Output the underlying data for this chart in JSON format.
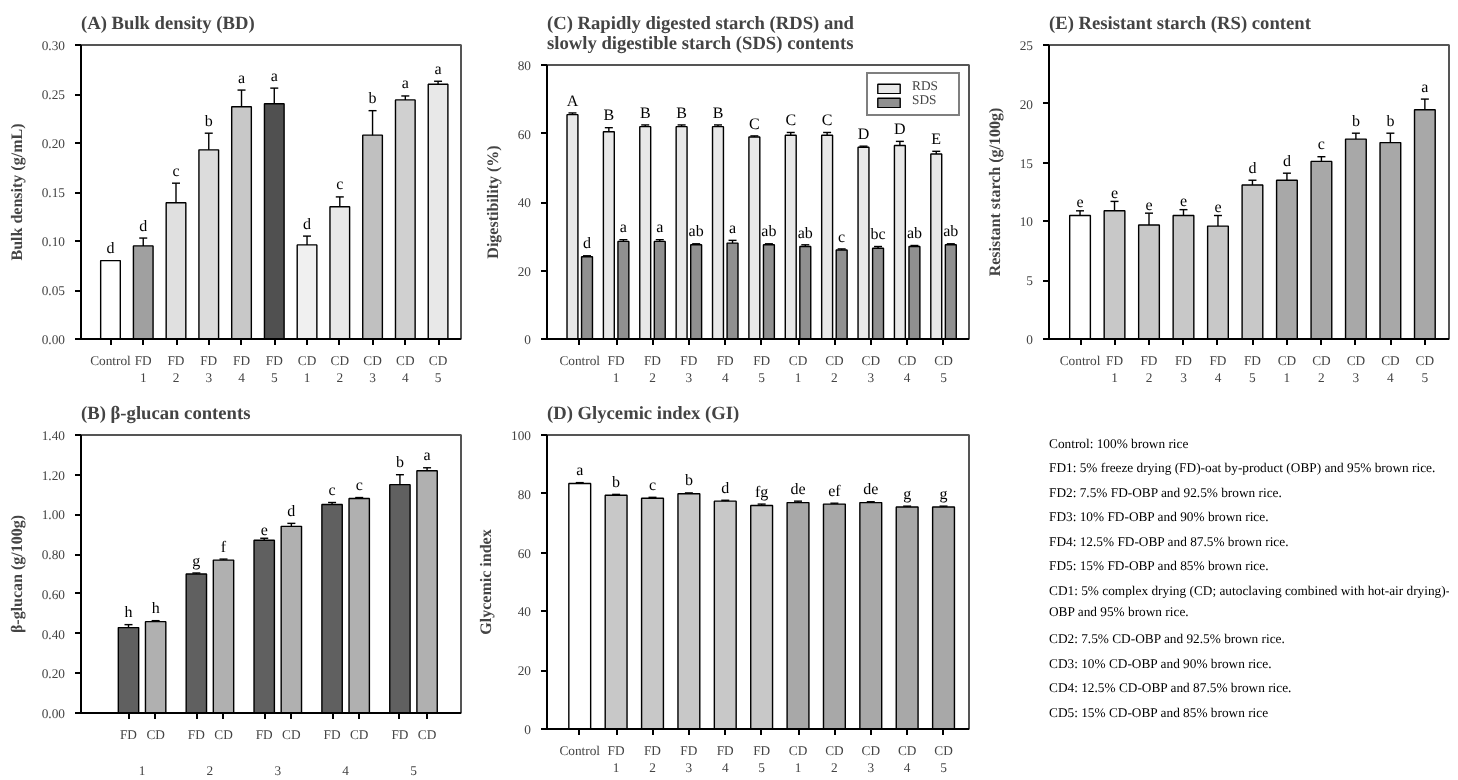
{
  "chart_data": [
    {
      "type": "bar",
      "title": "(A) Bulk density (BD)",
      "ylabel": "Bulk density (g/mL)",
      "categories": [
        "Control",
        "FD\n1",
        "FD\n2",
        "FD\n3",
        "FD\n4",
        "FD\n5",
        "CD\n1",
        "CD\n2",
        "CD\n3",
        "CD\n4",
        "CD\n5"
      ],
      "ylim": [
        0,
        0.3
      ],
      "yticks": [
        {
          "value": 0,
          "label": "0.00"
        },
        {
          "value": 0.05,
          "label": "0.05"
        },
        {
          "value": 0.1,
          "label": "0.10"
        },
        {
          "value": 0.15,
          "label": "0.15"
        },
        {
          "value": 0.2,
          "label": "0.20"
        },
        {
          "value": 0.25,
          "label": "0.25"
        },
        {
          "value": 0.3,
          "label": "0.30"
        }
      ],
      "grid": false,
      "legend": false,
      "series": [
        {
          "colors": [
            "#ffffff",
            "#a0a0a0",
            "#e0e0e0",
            "#dcdcdc",
            "#c8c8c8",
            "#505050",
            "#f0f0f0",
            "#e8e8e8",
            "#c0c0c0",
            "#d0d0d0",
            "#e8e8e8"
          ],
          "values": [
            0.08,
            0.095,
            0.139,
            0.193,
            0.237,
            0.24,
            0.096,
            0.135,
            0.208,
            0.244,
            0.26
          ],
          "errors": [
            null,
            0.008,
            0.02,
            0.017,
            0.017,
            0.016,
            0.009,
            0.01,
            0.025,
            0.004,
            0.003
          ],
          "value_labels": [
            "d",
            "d",
            "c",
            "b",
            "a",
            "a",
            "d",
            "c",
            "b",
            "a",
            "a"
          ]
        }
      ]
    },
    {
      "type": "bar",
      "title": "(B) β-glucan contents",
      "ylabel": "β-glucan (g/100g)",
      "categories": [
        "1",
        "2",
        "3",
        "4",
        "5"
      ],
      "ylim": [
        0,
        1.4
      ],
      "yticks": [
        {
          "value": 0,
          "label": "0.00"
        },
        {
          "value": 0.2,
          "label": "0.20"
        },
        {
          "value": 0.4,
          "label": "0.40"
        },
        {
          "value": 0.6,
          "label": "0.60"
        },
        {
          "value": 0.8,
          "label": "0.80"
        },
        {
          "value": 1.0,
          "label": "1.00"
        },
        {
          "value": 1.2,
          "label": "1.20"
        },
        {
          "value": 1.4,
          "label": "1.40"
        }
      ],
      "grid": false,
      "legend": "bottom",
      "series": [
        {
          "name": "FD",
          "color": "#606060",
          "values": [
            0.43,
            0.7,
            0.87,
            1.05,
            1.15
          ],
          "errors": [
            0.015,
            0.005,
            0.01,
            0.01,
            0.05
          ],
          "value_labels": [
            "h",
            "g",
            "e",
            "c",
            "b"
          ]
        },
        {
          "name": "CD",
          "color": "#b0b0b0",
          "values": [
            0.46,
            0.77,
            0.94,
            1.08,
            1.22
          ],
          "errors": [
            0.005,
            0.005,
            0.015,
            0.005,
            0.015
          ],
          "value_labels": [
            "h",
            "f",
            "d",
            "c",
            "a"
          ]
        }
      ]
    },
    {
      "type": "bar",
      "title": "(C) Rapidly digested starch (RDS) and\nslowly digestible starch (SDS) contents",
      "ylabel": "Digestibility (%)",
      "categories": [
        "Control",
        "FD\n1",
        "FD\n2",
        "FD\n3",
        "FD\n4",
        "FD\n5",
        "CD\n1",
        "CD\n2",
        "CD\n3",
        "CD\n4",
        "CD\n5"
      ],
      "ylim": [
        0,
        80
      ],
      "yticks": [
        0,
        20,
        40,
        60,
        80
      ],
      "grid": false,
      "legend": "top right",
      "series": [
        {
          "name": "RDS",
          "color": "#e8e8e8",
          "values": [
            65.5,
            60.5,
            62,
            62,
            62,
            59,
            59.5,
            59.5,
            56,
            56.5,
            54
          ],
          "errors": [
            0.5,
            1.2,
            0.5,
            0.5,
            0.5,
            0.3,
            0.8,
            0.8,
            0.3,
            1.2,
            0.8
          ],
          "value_labels": [
            "A",
            "B",
            "B",
            "B",
            "B",
            "C",
            "C",
            "C",
            "D",
            "D",
            "E"
          ]
        },
        {
          "name": "SDS",
          "color": "#909090",
          "values": [
            24,
            28.5,
            28.5,
            27.5,
            28,
            27.5,
            27,
            26,
            26.5,
            27,
            27.5
          ],
          "errors": [
            0.3,
            0.5,
            0.5,
            0.3,
            0.8,
            0.3,
            0.5,
            0.3,
            0.5,
            0.3,
            0.3
          ],
          "value_labels": [
            "d",
            "a",
            "a",
            "ab",
            "a",
            "ab",
            "ab",
            "c",
            "bc",
            "ab",
            "ab"
          ]
        }
      ]
    },
    {
      "type": "bar",
      "title": "(D) Glycemic index (GI)",
      "ylabel": "Glycemic index",
      "categories": [
        "Control",
        "FD\n1",
        "FD\n2",
        "FD\n3",
        "FD\n4",
        "FD\n5",
        "CD\n1",
        "CD\n2",
        "CD\n3",
        "CD\n4",
        "CD\n5"
      ],
      "ylim": [
        0,
        100
      ],
      "yticks": [
        0,
        20,
        40,
        60,
        80,
        100
      ],
      "grid": false,
      "legend": false,
      "series": [
        {
          "colors": [
            "#ffffff",
            "#c8c8c8",
            "#c8c8c8",
            "#c8c8c8",
            "#c8c8c8",
            "#c8c8c8",
            "#a8a8a8",
            "#a8a8a8",
            "#a8a8a8",
            "#a8a8a8",
            "#a8a8a8"
          ],
          "values": [
            83.5,
            79.5,
            78.5,
            80,
            77.5,
            76,
            77,
            76.5,
            77,
            75.5,
            75.5
          ],
          "errors": [
            0.3,
            0.3,
            0.3,
            0.3,
            0.3,
            0.5,
            0.5,
            0.3,
            0.3,
            0.3,
            0.3
          ],
          "value_labels": [
            "a",
            "b",
            "c",
            "b",
            "d",
            "fg",
            "de",
            "ef",
            "de",
            "g",
            "g"
          ]
        }
      ]
    },
    {
      "type": "bar",
      "title": "(E) Resistant starch (RS) content",
      "ylabel": "Resistant starch (g/100g)",
      "categories": [
        "Control",
        "FD\n1",
        "FD\n2",
        "FD\n3",
        "FD\n4",
        "FD\n5",
        "CD\n1",
        "CD\n2",
        "CD\n3",
        "CD\n4",
        "CD\n5"
      ],
      "ylim": [
        0,
        25
      ],
      "yticks": [
        0,
        5,
        10,
        15,
        20,
        25
      ],
      "grid": false,
      "legend": false,
      "series": [
        {
          "colors": [
            "#ffffff",
            "#c8c8c8",
            "#c8c8c8",
            "#c8c8c8",
            "#c8c8c8",
            "#c8c8c8",
            "#a8a8a8",
            "#a8a8a8",
            "#a8a8a8",
            "#a8a8a8",
            "#a8a8a8"
          ],
          "values": [
            10.5,
            10.9,
            9.7,
            10.5,
            9.6,
            13.1,
            13.5,
            15.1,
            17.0,
            16.7,
            19.5
          ],
          "errors": [
            0.4,
            0.8,
            1.0,
            0.5,
            0.9,
            0.4,
            0.6,
            0.4,
            0.5,
            0.8,
            0.9
          ],
          "value_labels": [
            "e",
            "e",
            "e",
            "e",
            "e",
            "d",
            "d",
            "c",
            "b",
            "b",
            "a"
          ]
        }
      ]
    },
    {
      "type": "other",
      "annotations": [
        "Control: 100% brown rice",
        "FD1: 5% freeze drying (FD)-oat by-product (OBP) and 95% brown rice.",
        "FD2: 7.5% FD-OBP and 92.5% brown rice.",
        "FD3: 10% FD-OBP and 90% brown rice.",
        "FD4: 12.5% FD-OBP and 87.5% brown rice.",
        "FD5: 15% FD-OBP and 85% brown rice.",
        "CD1: 5% complex drying (CD; autoclaving combined with hot-air drying)-\nOBP and 95% brown rice.",
        "CD2: 7.5% CD-OBP and 92.5% brown rice.",
        "CD3: 10% CD-OBP and 90% brown rice.",
        "CD4: 12.5% CD-OBP and 87.5% brown rice.",
        "CD5: 15% CD-OBP and 85% brown rice"
      ]
    }
  ]
}
